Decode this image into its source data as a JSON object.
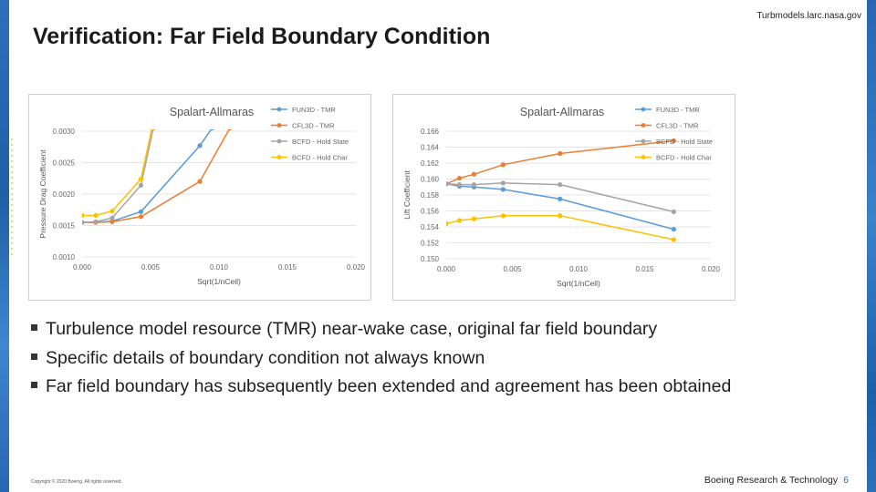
{
  "slide": {
    "title": "Verification: Far Field Boundary Condition",
    "source": "Turbmodels.larc.nasa.gov",
    "bullets": [
      "Turbulence model resource (TMR) near-wake case, original far field boundary",
      "Specific details of boundary condition not always known",
      "Far field boundary has subsequently been extended and agreement has been obtained"
    ],
    "copyright": "Copyright © 2020 Boeing. All rights reserved.",
    "footer_org": "Boeing Research & Technology",
    "page_number": "6"
  },
  "chart_data": [
    {
      "type": "line",
      "title": "Spalart-Allmaras",
      "xlabel": "Sqrt(1/nCell)",
      "ylabel": "Pressure Drag Coefficient",
      "xlim": [
        0,
        0.02
      ],
      "ylim": [
        0.001,
        0.003
      ],
      "xticks": [
        "0.000",
        "0.005",
        "0.010",
        "0.015",
        "0.020"
      ],
      "yticks": [
        "0.0010",
        "0.0015",
        "0.0020",
        "0.0025",
        "0.0030"
      ],
      "legend_position": "top-right",
      "series": [
        {
          "name": "FUN3D - TMR",
          "color": "#5b9bd5",
          "points": [
            [
              0.0,
              0.00155
            ],
            [
              0.001,
              0.00155
            ],
            [
              0.0022,
              0.00157
            ],
            [
              0.0043,
              0.00172
            ],
            [
              0.0086,
              0.00277
            ],
            [
              0.0095,
              0.00305
            ]
          ]
        },
        {
          "name": "CFL3D - TMR",
          "color": "#ed7d31",
          "points": [
            [
              0.0,
              0.00155
            ],
            [
              0.001,
              0.00155
            ],
            [
              0.0022,
              0.00156
            ],
            [
              0.0043,
              0.00164
            ],
            [
              0.0086,
              0.0022
            ],
            [
              0.0108,
              0.00305
            ]
          ]
        },
        {
          "name": "BCFD - Hold State",
          "color": "#a5a5a5",
          "points": [
            [
              0.0,
              0.00155
            ],
            [
              0.001,
              0.00156
            ],
            [
              0.0022,
              0.00162
            ],
            [
              0.0043,
              0.00214
            ],
            [
              0.0052,
              0.00305
            ]
          ]
        },
        {
          "name": "BCFD - Hold Char",
          "color": "#ffc000",
          "points": [
            [
              0.0,
              0.00166
            ],
            [
              0.001,
              0.00166
            ],
            [
              0.0022,
              0.00173
            ],
            [
              0.0043,
              0.00224
            ],
            [
              0.0051,
              0.00305
            ]
          ]
        }
      ]
    },
    {
      "type": "line",
      "title": "Spalart-Allmaras",
      "xlabel": "Sqrt(1/nCell)",
      "ylabel": "Lift Coefficient",
      "xlim": [
        0,
        0.02
      ],
      "ylim": [
        0.15,
        0.166
      ],
      "xticks": [
        "0.000",
        "0.005",
        "0.010",
        "0.015",
        "0.020"
      ],
      "yticks": [
        "0.150",
        "0.152",
        "0.154",
        "0.156",
        "0.158",
        "0.160",
        "0.162",
        "0.164",
        "0.166"
      ],
      "legend_position": "top-right",
      "series": [
        {
          "name": "FUN3D - TMR",
          "color": "#5b9bd5",
          "points": [
            [
              0.0,
              0.1594
            ],
            [
              0.001,
              0.1591
            ],
            [
              0.0021,
              0.159
            ],
            [
              0.0043,
              0.1587
            ],
            [
              0.0086,
              0.1575
            ],
            [
              0.0172,
              0.1537
            ]
          ]
        },
        {
          "name": "CFL3D - TMR",
          "color": "#ed7d31",
          "points": [
            [
              0.0,
              0.1594
            ],
            [
              0.001,
              0.1601
            ],
            [
              0.0021,
              0.1606
            ],
            [
              0.0043,
              0.1618
            ],
            [
              0.0086,
              0.1632
            ],
            [
              0.0172,
              0.1648
            ]
          ]
        },
        {
          "name": "BCFD - Hold State",
          "color": "#a5a5a5",
          "points": [
            [
              0.0,
              0.1594
            ],
            [
              0.001,
              0.1593
            ],
            [
              0.0021,
              0.1593
            ],
            [
              0.0043,
              0.1595
            ],
            [
              0.0086,
              0.1593
            ],
            [
              0.0172,
              0.1559
            ]
          ]
        },
        {
          "name": "BCFD - Hold Char",
          "color": "#ffc000",
          "points": [
            [
              0.0,
              0.1544
            ],
            [
              0.001,
              0.1548
            ],
            [
              0.0021,
              0.155
            ],
            [
              0.0043,
              0.1554
            ],
            [
              0.0086,
              0.1554
            ],
            [
              0.0172,
              0.1524
            ]
          ]
        }
      ]
    }
  ]
}
